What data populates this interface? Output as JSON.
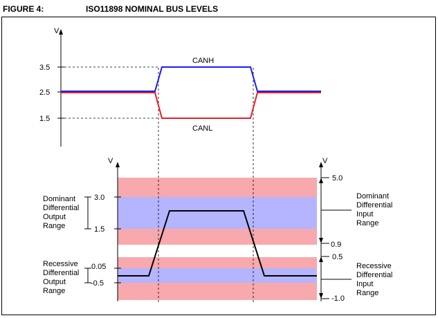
{
  "figure": {
    "label": "FIGURE 4:",
    "title": "ISO11898 NOMINAL BUS LEVELS"
  },
  "top_plot": {
    "axis_unit": "V",
    "ticks": [
      "3.5",
      "2.5",
      "1.5"
    ],
    "canh_label": "CANH",
    "canl_label": "CANL",
    "colors": {
      "canh": "#1a1aff",
      "canl": "#e0202a"
    }
  },
  "bottom_plot": {
    "left_axis_unit": "V",
    "right_axis_unit": "V",
    "left_ticks": [
      "3.0",
      "1.5",
      "0.05",
      "-0.5"
    ],
    "right_ticks": [
      "5.0",
      "0.9",
      "0.5",
      "-1.0"
    ],
    "dominant_output_label": [
      "Dominant",
      "Differential",
      "Output",
      "Range"
    ],
    "recessive_output_label": [
      "Recessive",
      "Differential",
      "Output",
      "Range"
    ],
    "dominant_input_label": [
      "Dominant",
      "Differential",
      "Input",
      "Range"
    ],
    "recessive_input_label": [
      "Recessive",
      "Differential",
      "Input",
      "Range"
    ],
    "colors": {
      "pink_band": "#f7a9ad",
      "blue_band": "#b4b4ff",
      "signal": "#000000"
    }
  }
}
